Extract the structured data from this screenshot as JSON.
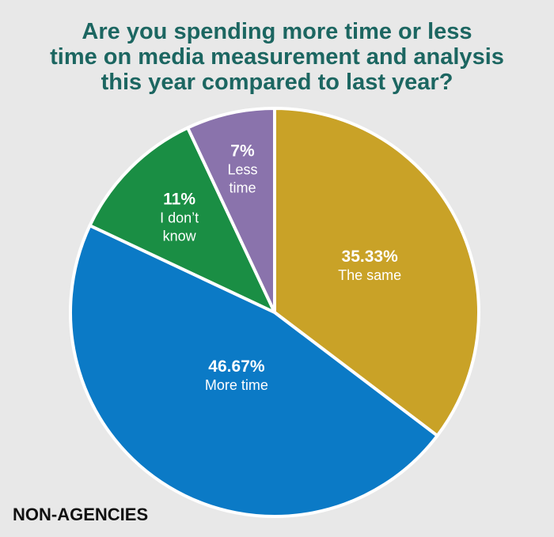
{
  "chart_data": {
    "type": "pie",
    "title_lines": [
      "Are you spending more time or less",
      "time on media measurement and analysis",
      "this year compared to last year?"
    ],
    "group_label": "NON-AGENCIES",
    "start_angle_deg": 0,
    "direction": "clockwise",
    "slices": [
      {
        "pct_label": "35.33%",
        "name_lines": [
          "The same"
        ],
        "value": 35.33,
        "color": "#c9a227"
      },
      {
        "pct_label": "46.67%",
        "name_lines": [
          "More time"
        ],
        "value": 46.67,
        "color": "#0b7ac6"
      },
      {
        "pct_label": "11%",
        "name_lines": [
          "I don’t",
          "know"
        ],
        "value": 11,
        "color": "#1a8e44"
      },
      {
        "pct_label": "7%",
        "name_lines": [
          "Less",
          "time"
        ],
        "value": 7,
        "color": "#8a73ac"
      }
    ],
    "colors": {
      "title": "#1c6661",
      "label_text": "#ffffff",
      "group_label": "#111111",
      "slice_border": "#ffffff",
      "background": "#e8e8e8"
    }
  }
}
